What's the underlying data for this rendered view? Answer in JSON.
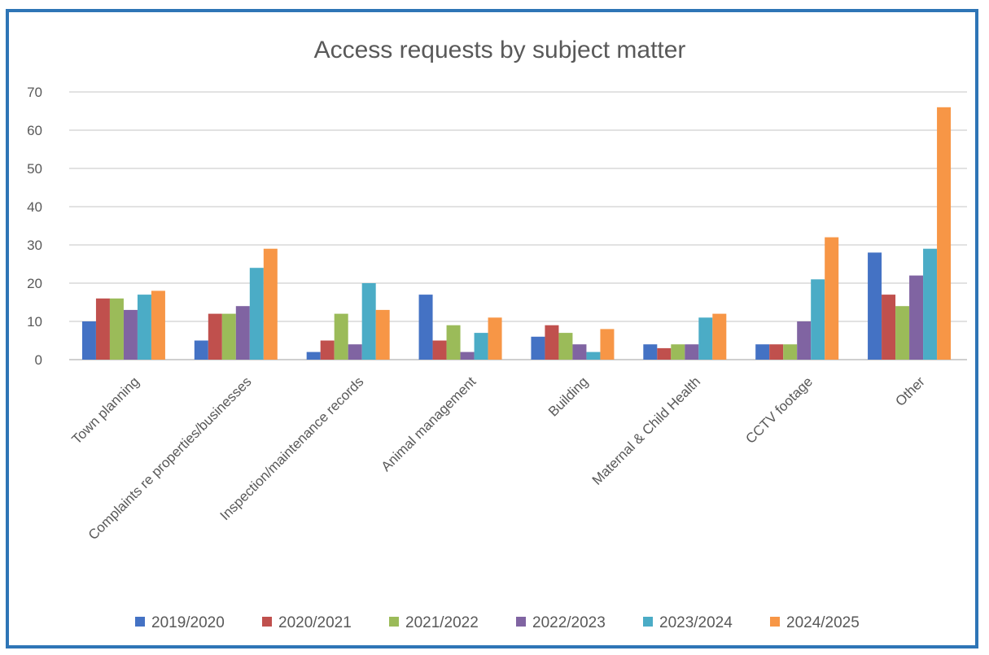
{
  "chart_data": {
    "type": "bar",
    "title": "Access requests by subject matter",
    "categories": [
      "Town planning",
      "Complaints re properties/businesses",
      "Inspection/maintenance records",
      "Animal management",
      "Building",
      "Maternal & Child Health",
      "CCTV footage",
      "Other"
    ],
    "series": [
      {
        "name": "2019/2020",
        "color": "#4472c4",
        "values": [
          10,
          5,
          2,
          17,
          6,
          4,
          4,
          28
        ]
      },
      {
        "name": "2020/2021",
        "color": "#c0504d",
        "values": [
          16,
          12,
          5,
          5,
          9,
          3,
          4,
          17
        ]
      },
      {
        "name": "2021/2022",
        "color": "#9bbb59",
        "values": [
          16,
          12,
          12,
          9,
          7,
          4,
          4,
          14
        ]
      },
      {
        "name": "2022/2023",
        "color": "#8064a2",
        "values": [
          13,
          14,
          4,
          2,
          4,
          4,
          10,
          22
        ]
      },
      {
        "name": "2023/2024",
        "color": "#4bacc6",
        "values": [
          17,
          24,
          20,
          7,
          2,
          11,
          21,
          29
        ]
      },
      {
        "name": "2024/2025",
        "color": "#f79646",
        "values": [
          18,
          29,
          13,
          11,
          8,
          12,
          32,
          66
        ]
      }
    ],
    "ylim": [
      0,
      70
    ],
    "yticks": [
      "0",
      "10",
      "20",
      "30",
      "40",
      "50",
      "60",
      "70"
    ],
    "grid": true,
    "legend_position": "bottom"
  }
}
